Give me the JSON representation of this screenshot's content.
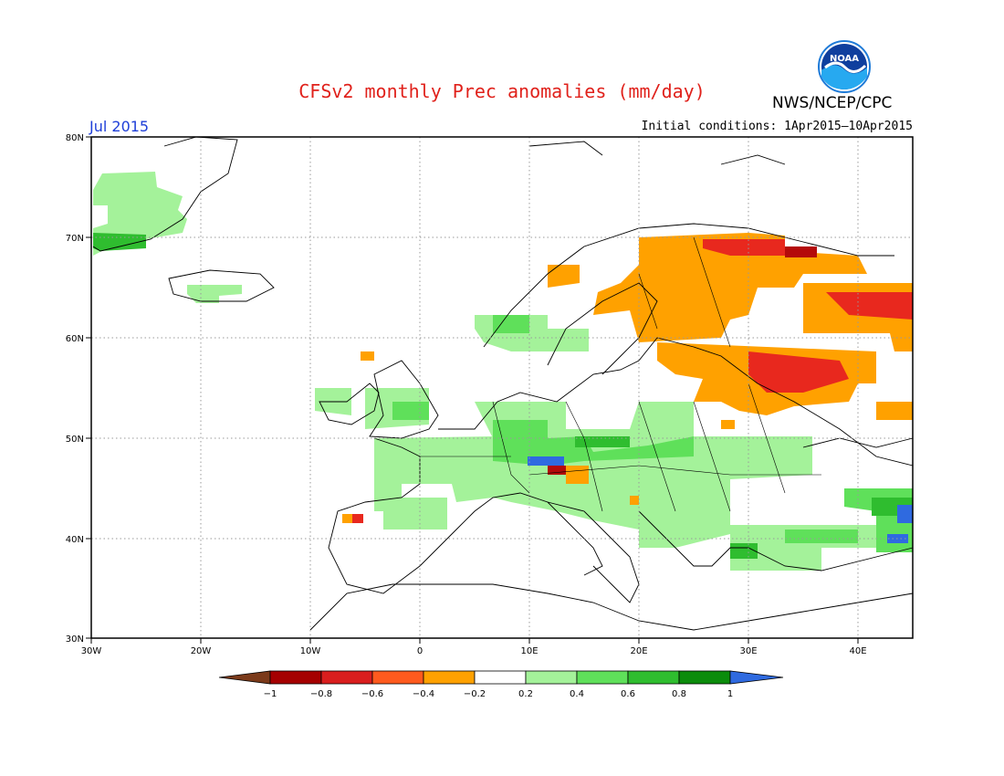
{
  "header": {
    "title": "CFSv2 monthly Prec anomalies (mm/day)",
    "agency": "NWS/NCEP/CPC",
    "logo_text": "NOAA",
    "month": "Jul 2015",
    "initial_conditions": "Initial conditions: 1Apr2015–10Apr2015"
  },
  "map": {
    "lon_labels": [
      "30W",
      "20W",
      "10W",
      "0",
      "10E",
      "20E",
      "30E",
      "40E"
    ],
    "lat_labels": [
      "80N",
      "70N",
      "60N",
      "50N",
      "40N",
      "30N"
    ]
  },
  "colorbar": {
    "tick_labels": [
      "−1",
      "−0.8",
      "−0.6",
      "−0.4",
      "−0.2",
      "0.2",
      "0.4",
      "0.6",
      "0.8",
      "1"
    ],
    "colors": [
      "#7b3a1a",
      "#a50000",
      "#d91e1e",
      "#ff5a1e",
      "#ffa100",
      "#ffffff",
      "#a4f29a",
      "#5fe05a",
      "#2fbd2f",
      "#0b8c0b",
      "#2f6ae0"
    ]
  },
  "anomaly_colors": {
    "orange": "#ffa100",
    "red": "#e8281e",
    "dark_red": "#b40a0a",
    "light_green": "#a4f29a",
    "green": "#5fe05a",
    "mid_green": "#2fbd2f",
    "dark_green": "#0b8c0b",
    "blue": "#2f6ae0"
  }
}
